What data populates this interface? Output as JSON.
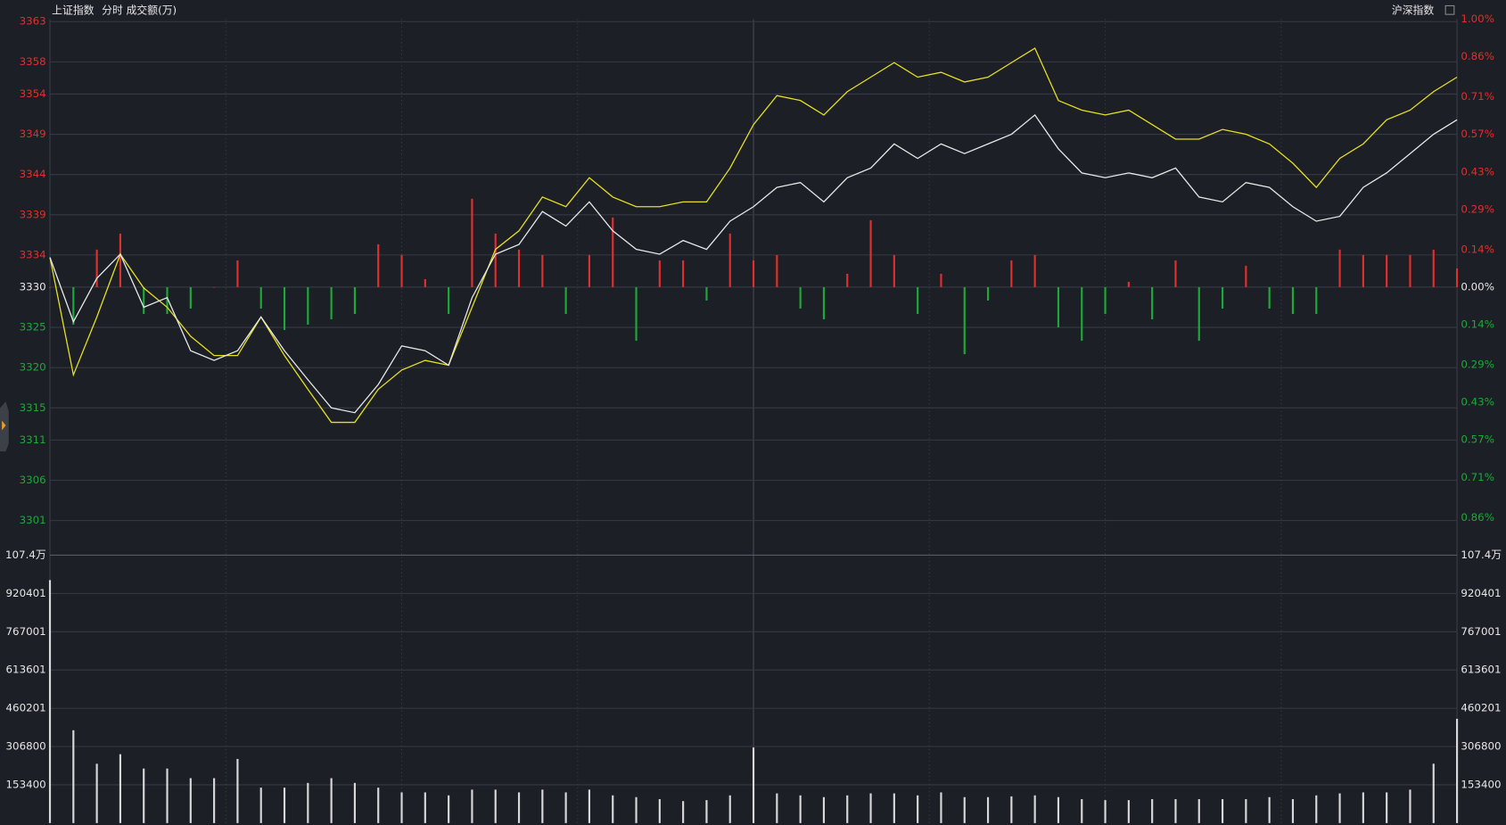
{
  "chart_data": [
    {
      "type": "line",
      "title": "上证指数",
      "subtitle": "分时 成交额(万)",
      "annotation": "沪深指数",
      "x": [
        0,
        4,
        8,
        12,
        16,
        20,
        24,
        28,
        32,
        36,
        40,
        44,
        48,
        52,
        56,
        60,
        64,
        68,
        72,
        76,
        80,
        84,
        88,
        92,
        96,
        100,
        104,
        108,
        112,
        116,
        120,
        124,
        128,
        132,
        136,
        140,
        144,
        148,
        152,
        156,
        160,
        164,
        168,
        172,
        176,
        180,
        184,
        188,
        192,
        196,
        200,
        204,
        208,
        212,
        216,
        220,
        224,
        228,
        232,
        236,
        240
      ],
      "xlim": [
        0,
        240
      ],
      "ylim": [
        3296.7,
        3363.3
      ],
      "yticks": [
        3363,
        3358,
        3354,
        3349,
        3344,
        3339,
        3334,
        3330,
        3325,
        3320,
        3315,
        3311,
        3306,
        3301
      ],
      "y2lim": [
        -1.0,
        1.0
      ],
      "y2ticks": [
        {
          "value": 1.0,
          "label": "1.00%"
        },
        {
          "value": 0.86,
          "label": "0.86%"
        },
        {
          "value": 0.71,
          "label": "0.71%"
        },
        {
          "value": 0.57,
          "label": "0.57%"
        },
        {
          "value": 0.43,
          "label": "0.43%"
        },
        {
          "value": 0.29,
          "label": "0.29%"
        },
        {
          "value": 0.14,
          "label": "0.14%"
        },
        {
          "value": 0,
          "label": "0.00%"
        },
        {
          "value": -0.14,
          "label": "0.14%"
        },
        {
          "value": -0.29,
          "label": "0.29%"
        },
        {
          "value": -0.43,
          "label": "0.43%"
        },
        {
          "value": -0.57,
          "label": "0.57%"
        },
        {
          "value": -0.71,
          "label": "0.71%"
        },
        {
          "value": -0.86,
          "label": "0.86%"
        }
      ],
      "up_color": "#e0302e",
      "down_color": "#1fa83a",
      "grid": true,
      "series": [
        {
          "type": "bar",
          "axis": "y2",
          "values": [
            0,
            -0.14,
            0.14,
            0.2,
            -0.1,
            -0.1,
            -0.08,
            0,
            0.1,
            -0.08,
            -0.16,
            -0.14,
            -0.12,
            -0.1,
            0.16,
            0.12,
            0.03,
            -0.1,
            0.33,
            0.2,
            0.14,
            0.12,
            -0.1,
            0.12,
            0.26,
            -0.2,
            0.1,
            0.1,
            -0.05,
            0.2,
            0.1,
            0.12,
            -0.08,
            -0.12,
            0.05,
            0.25,
            0.12,
            -0.1,
            0.05,
            -0.25,
            -0.05,
            0.1,
            0.12,
            -0.15,
            -0.2,
            -0.1,
            0.02,
            -0.12,
            0.1,
            -0.2,
            -0.08,
            0.08,
            -0.08,
            -0.1,
            -0.1,
            0.14,
            0.12,
            0.12,
            0.12,
            0.14,
            0.07
          ]
        },
        {
          "type": "line",
          "color": "#e6e020",
          "values": [
            3333.7,
            3319.1,
            3326.3,
            3334.1,
            3329.9,
            3327.5,
            3323.9,
            3321.5,
            3321.5,
            3326.3,
            3321.5,
            3317.3,
            3313.2,
            3313.2,
            3317.3,
            3319.7,
            3320.9,
            3320.3,
            3327.5,
            3334.7,
            3337.0,
            3341.2,
            3340.0,
            3343.6,
            3341.2,
            3340.0,
            3340.0,
            3340.6,
            3340.6,
            3344.8,
            3350.2,
            3353.8,
            3353.2,
            3351.4,
            3354.3,
            3356.1,
            3357.9,
            3356.1,
            3356.7,
            3355.5,
            3356.1,
            3357.9,
            3359.7,
            3353.2,
            3352.0,
            3351.4,
            3352.0,
            3350.2,
            3348.4,
            3348.4,
            3349.6,
            3349.0,
            3347.8,
            3345.4,
            3342.4,
            3346.0,
            3347.8,
            3350.8,
            3352.0,
            3354.3,
            3356.1
          ]
        },
        {
          "type": "line",
          "color": "#e8e8e8",
          "values": [
            3333.7,
            3325.7,
            3331.1,
            3334.1,
            3327.5,
            3328.7,
            3322.1,
            3320.9,
            3322.1,
            3326.3,
            3322.1,
            3318.5,
            3315.0,
            3314.4,
            3317.9,
            3322.7,
            3322.1,
            3320.3,
            3328.7,
            3334.1,
            3335.3,
            3339.4,
            3337.6,
            3340.6,
            3337.0,
            3334.7,
            3334.1,
            3335.8,
            3334.7,
            3338.2,
            3340.0,
            3342.4,
            3343.0,
            3340.6,
            3343.6,
            3344.8,
            3347.8,
            3346.0,
            3347.8,
            3346.6,
            3347.8,
            3349.0,
            3351.4,
            3347.2,
            3344.2,
            3343.6,
            3344.2,
            3343.6,
            3344.8,
            3341.2,
            3340.6,
            3343.0,
            3342.4,
            3340.0,
            3338.2,
            3338.8,
            3342.4,
            3344.2,
            3346.6,
            3349.0,
            3350.8
          ]
        }
      ]
    },
    {
      "type": "bar",
      "xlim": [
        0,
        240
      ],
      "ylim": [
        0,
        1074000
      ],
      "yticks": [
        {
          "value": 1074000,
          "label": "107.4万"
        },
        920401,
        767001,
        613601,
        460201,
        306800,
        153400
      ],
      "color": "#d8d8d8",
      "values": [
        974000,
        372000,
        237800,
        276000,
        218600,
        218600,
        180000,
        180000,
        257000,
        142000,
        142000,
        161000,
        180000,
        161000,
        142000,
        123000,
        123000,
        111000,
        134000,
        134000,
        123000,
        134000,
        123000,
        134000,
        111000,
        104000,
        96000,
        88000,
        92000,
        111000,
        303000,
        119000,
        111000,
        104000,
        111000,
        119000,
        119000,
        111000,
        123000,
        104000,
        104000,
        107000,
        111000,
        104000,
        96000,
        92000,
        92000,
        96000,
        96000,
        96000,
        96000,
        96000,
        104000,
        96000,
        111000,
        119000,
        123000,
        123000,
        134000,
        238000,
        418000
      ]
    }
  ]
}
